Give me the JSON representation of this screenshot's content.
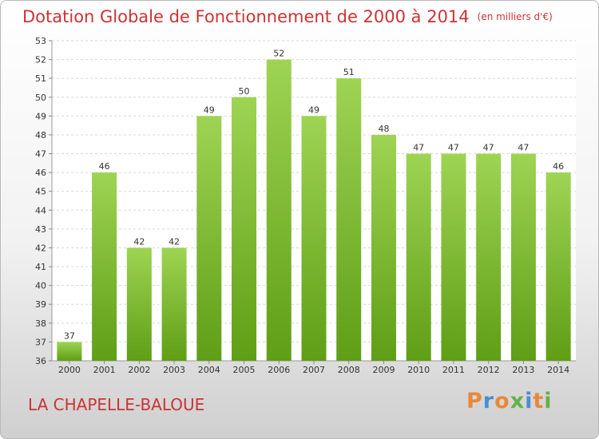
{
  "header": {
    "title": "Dotation Globale de Fonctionnement de 2000 à 2014",
    "subtitle": "(en milliers d'€)"
  },
  "footer": {
    "commune": "LA CHAPELLE-BALOUE",
    "logo_text": "Proxiti"
  },
  "colors": {
    "title": "#cc3333",
    "bar_top": "#9ed453",
    "bar_bottom": "#5f9e16",
    "grid": "#d8d8d8",
    "axis_text": "#333333"
  },
  "chart_data": {
    "type": "bar",
    "title": "Dotation Globale de Fonctionnement de 2000 à 2014",
    "subtitle": "(en milliers d'€)",
    "categories": [
      "2000",
      "2001",
      "2002",
      "2003",
      "2004",
      "2005",
      "2006",
      "2007",
      "2008",
      "2009",
      "2010",
      "2011",
      "2012",
      "2013",
      "2014"
    ],
    "values": [
      37,
      46,
      42,
      42,
      49,
      50,
      52,
      49,
      51,
      48,
      47,
      47,
      47,
      47,
      46
    ],
    "ylim": [
      36,
      53
    ],
    "yticks": [
      36,
      37,
      38,
      39,
      40,
      41,
      42,
      43,
      44,
      45,
      46,
      47,
      48,
      49,
      50,
      51,
      52,
      53
    ],
    "grid": true,
    "legend": "none",
    "data_labels": true
  }
}
